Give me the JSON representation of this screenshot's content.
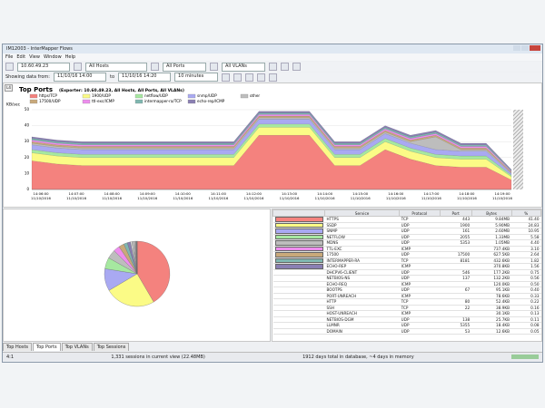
{
  "window": {
    "title": "IM12003 - InterMapper Flows",
    "menu": [
      "File",
      "Edit",
      "View",
      "Window",
      "Help"
    ]
  },
  "toolbar": {
    "exporter": "10.60.49.23",
    "hosts": "All Hosts",
    "ports": "All Ports",
    "vlans": "All VLANs",
    "showing_label": "Showing data from:",
    "from": "11/10/16 14:00",
    "to_label": "to",
    "to": "11/10/16 14:20",
    "interval": "10 minutes"
  },
  "panel": {
    "button": "L4",
    "title": "Top Ports",
    "subtitle": "(Exporter: 10.60.49.23, All Hosts, All Ports, All VLANs)"
  },
  "chart_data": {
    "type": "stacked-area",
    "y_label": "KB/sec",
    "ylim": [
      0,
      50
    ],
    "yticks": [
      0,
      10,
      20,
      30,
      40,
      50
    ],
    "grid": true,
    "xticks": [
      "14:06:00",
      "14:07:00",
      "14:08:00",
      "14:09:00",
      "14:10:00",
      "14:11:00",
      "14:12:00",
      "14:13:00",
      "14:14:00",
      "14:15:00",
      "14:16:00",
      "14:17:00",
      "14:18:00",
      "14:19:00"
    ],
    "x_date": "11/10/2016",
    "series": [
      {
        "name": "https/TCP",
        "color": "#f4827e",
        "values": [
          18,
          16,
          15,
          15,
          15,
          15,
          15,
          15,
          15,
          34,
          34,
          34,
          15,
          15,
          25,
          19,
          15,
          14,
          14,
          6
        ]
      },
      {
        "name": "1900/UDP",
        "color": "#fbfb86",
        "values": [
          5,
          5,
          5,
          5,
          5,
          5,
          5,
          5,
          5,
          5,
          5,
          5,
          5,
          5,
          5,
          5,
          5,
          5,
          5,
          2
        ]
      },
      {
        "name": "netflow/UDP",
        "color": "#a6e8a0",
        "values": [
          2,
          2,
          2,
          2,
          2,
          2,
          2,
          2,
          2,
          2,
          2,
          2,
          2,
          2,
          2,
          2,
          2,
          2,
          2,
          1
        ]
      },
      {
        "name": "snmp/UDP",
        "color": "#a9a9f2",
        "values": [
          3,
          3,
          3,
          3,
          3,
          3,
          3,
          3,
          3,
          3,
          3,
          3,
          3,
          3,
          3,
          3,
          3,
          3,
          3,
          1
        ]
      },
      {
        "name": "other",
        "color": "#bdbdbd",
        "values": [
          1,
          1,
          1,
          1,
          1,
          1,
          1,
          1,
          1,
          1,
          1,
          1,
          1,
          1,
          1,
          1,
          8,
          1,
          1,
          0.5
        ]
      },
      {
        "name": "17500/UDP",
        "color": "#c9a97a",
        "values": [
          1,
          1,
          1,
          1,
          1,
          1,
          1,
          1,
          1,
          1,
          1,
          1,
          1,
          1,
          1,
          1,
          1,
          1,
          1,
          0.5
        ]
      },
      {
        "name": "ttl-exc/ICMP",
        "color": "#ee8eee",
        "values": [
          1,
          1,
          1,
          1,
          1,
          1,
          1,
          1,
          1,
          1,
          1,
          1,
          1,
          1,
          1,
          1,
          1,
          1,
          1,
          0.5
        ]
      },
      {
        "name": "intermapper-ra/TCP",
        "color": "#7fb7b0",
        "values": [
          1,
          1,
          1,
          1,
          1,
          1,
          1,
          1,
          1,
          1,
          1,
          1,
          1,
          1,
          1,
          1,
          1,
          1,
          1,
          0.5
        ]
      },
      {
        "name": "echo-rep/ICMP",
        "color": "#8a7fb3",
        "values": [
          1,
          1,
          1,
          1,
          1,
          1,
          1,
          1,
          1,
          1,
          1,
          1,
          1,
          1,
          1,
          1,
          1,
          1,
          1,
          0.5
        ]
      }
    ]
  },
  "pie": {
    "values": [
      41.4,
      24.83,
      10.95,
      5.58,
      4.4,
      3.1,
      2.64,
      1.82,
      1.56,
      0.75,
      0.56,
      0.5,
      0.4,
      0.33,
      0.22,
      0.16,
      0.13,
      0.11,
      0.08,
      0.05
    ],
    "colors": [
      "#f4827e",
      "#fbfb86",
      "#a9a9f2",
      "#a6e8a0",
      "#bdbdbd",
      "#ee8eee",
      "#c9a97a",
      "#7fb7b0",
      "#8a7fb3",
      "#dddddd",
      "#cccccc",
      "#eeeeee",
      "#d5d5d5",
      "#c4c4c4",
      "#e6e6e6",
      "#d0d0d0",
      "#bfbfbf",
      "#e0e0e0",
      "#cfcfcf",
      "#ebebeb"
    ]
  },
  "table": {
    "columns": [
      "Service",
      "Protocol",
      "Port",
      "Bytes",
      "%"
    ],
    "rows": [
      {
        "color": "#f4827e",
        "cells": [
          "HTTPS",
          "TCP",
          "443",
          "9.84MB",
          "41.40"
        ]
      },
      {
        "color": "#fbfb86",
        "cells": [
          "SSDP",
          "UDP",
          "1900",
          "5.90MB",
          "24.83"
        ]
      },
      {
        "color": "#a9a9f2",
        "cells": [
          "SNMP",
          "UDP",
          "161",
          "2.60MB",
          "10.95"
        ]
      },
      {
        "color": "#a6e8a0",
        "cells": [
          "NETFLOW",
          "UDP",
          "2055",
          "1.33MB",
          "5.58"
        ]
      },
      {
        "color": "#bdbdbd",
        "cells": [
          "MDNS",
          "UDP",
          "5353",
          "1.05MB",
          "4.40"
        ]
      },
      {
        "color": "#ee8eee",
        "cells": [
          "TTL-EXC",
          "ICMP",
          null,
          "737.4KB",
          "3.10"
        ]
      },
      {
        "color": "#c9a97a",
        "cells": [
          "17500",
          "UDP",
          "17500",
          "627.5KB",
          "2.64"
        ]
      },
      {
        "color": "#7fb7b0",
        "cells": [
          "INTERMAPPER-RA",
          "TCP",
          "8181",
          "432.6KB",
          "1.82"
        ]
      },
      {
        "color": "#8a7fb3",
        "cells": [
          "ECHO-REP",
          "ICMP",
          null,
          "370.8KB",
          "1.56"
        ]
      },
      {
        "cells": [
          "DHCPV6-CLIENT",
          "UDP",
          "546",
          "177.2KB",
          "0.75"
        ]
      },
      {
        "cells": [
          "NETBIOS-NS",
          "UDP",
          "137",
          "132.2KB",
          "0.56"
        ]
      },
      {
        "cells": [
          "ECHO-REQ",
          "ICMP",
          null,
          "120.0KB",
          "0.50"
        ]
      },
      {
        "cells": [
          "BOOTPS",
          "UDP",
          "67",
          "95.1KB",
          "0.40"
        ]
      },
      {
        "cells": [
          "PORT-UNREACH",
          "ICMP",
          null,
          "78.6KB",
          "0.33"
        ]
      },
      {
        "cells": [
          "HTTP",
          "TCP",
          "80",
          "52.4KB",
          "0.22"
        ]
      },
      {
        "cells": [
          "SSH",
          "TCP",
          "22",
          "38.9KB",
          "0.16"
        ]
      },
      {
        "cells": [
          "HOST-UNREACH",
          "ICMP",
          null,
          "30.1KB",
          "0.13"
        ]
      },
      {
        "cells": [
          "NETBIOS-DGM",
          "UDP",
          "138",
          "25.7KB",
          "0.11"
        ]
      },
      {
        "cells": [
          "LLMNR",
          "UDP",
          "5355",
          "18.4KB",
          "0.08"
        ]
      },
      {
        "cells": [
          "DOMAIN",
          "UDP",
          "53",
          "12.6KB",
          "0.05"
        ]
      }
    ]
  },
  "tabs": [
    "Top Hosts",
    "Top Ports",
    "Top VLANs",
    "Top Sessions"
  ],
  "status": {
    "left": "4:1",
    "center": "1,331 sessions in current view (22.48MB)",
    "right": "1912 days total in database, ~4 days in memory"
  }
}
